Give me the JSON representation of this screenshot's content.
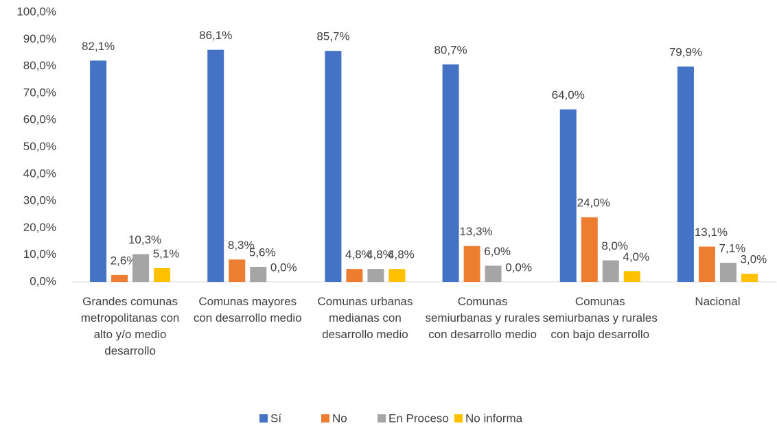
{
  "chart_data": {
    "type": "bar",
    "categories": [
      "Grandes comunas metropolitanas con alto y/o medio desarrollo",
      "Comunas mayores con desarrollo medio",
      "Comunas urbanas medianas con desarrollo medio",
      "Comunas semiurbanas y rurales con desarrollo medio",
      "Comunas semiurbanas y rurales con bajo desarrollo",
      "Nacional"
    ],
    "series": [
      {
        "name": "Sí",
        "color": "#4472c4",
        "values": [
          82.1,
          86.1,
          85.7,
          80.7,
          64.0,
          79.9
        ],
        "value_labels": [
          "82,1%",
          "86,1%",
          "85,7%",
          "80,7%",
          "64,0%",
          "79,9%"
        ]
      },
      {
        "name": "No",
        "color": "#ed7d31",
        "values": [
          2.6,
          8.3,
          4.8,
          13.3,
          24.0,
          13.1
        ],
        "value_labels": [
          "2,6%",
          "8,3%",
          "4,8%",
          "13,3%",
          "24,0%",
          "13,1%"
        ]
      },
      {
        "name": "En Proceso",
        "color": "#a5a5a5",
        "values": [
          10.3,
          5.6,
          4.8,
          6.0,
          8.0,
          7.1
        ],
        "value_labels": [
          "10,3%",
          "5,6%",
          "4,8%",
          "6,0%",
          "8,0%",
          "7,1%"
        ]
      },
      {
        "name": "No informa",
        "color": "#ffc000",
        "values": [
          5.1,
          0.0,
          4.8,
          0.0,
          4.0,
          3.0
        ],
        "value_labels": [
          "5,1%",
          "0,0%",
          "4,8%",
          "0,0%",
          "4,0%",
          "3,0%"
        ]
      }
    ],
    "ylim": [
      0,
      100
    ],
    "yticks": [
      {
        "value": 0,
        "label": "0,0%"
      },
      {
        "value": 10,
        "label": "10,0%"
      },
      {
        "value": 20,
        "label": "20,0%"
      },
      {
        "value": 30,
        "label": "30,0%"
      },
      {
        "value": 40,
        "label": "40,0%"
      },
      {
        "value": 50,
        "label": "50,0%"
      },
      {
        "value": 60,
        "label": "60,0%"
      },
      {
        "value": 70,
        "label": "70,0%"
      },
      {
        "value": 80,
        "label": "80,0%"
      },
      {
        "value": 90,
        "label": "90,0%"
      },
      {
        "value": 100,
        "label": "100,0%"
      }
    ],
    "grid": false,
    "legend": "bottom"
  }
}
